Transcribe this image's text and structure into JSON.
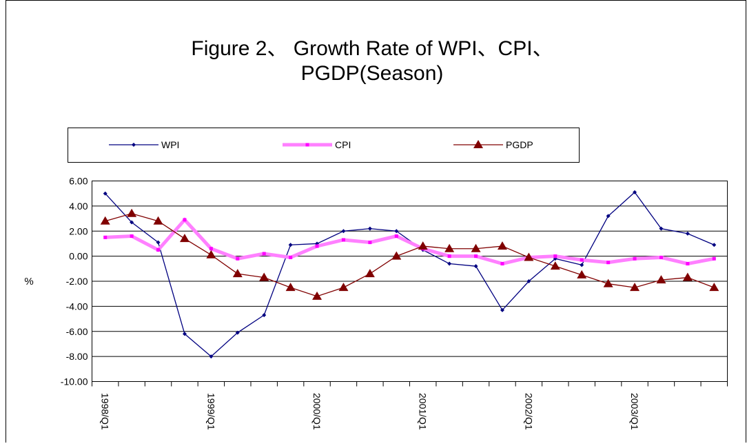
{
  "chart_data": {
    "type": "line",
    "title": "Figure 2、 Growth Rate of WPI、CPI、",
    "subtitle": "PGDP(Season)",
    "y_label": "%",
    "categories": [
      "1998/Q1",
      null,
      null,
      null,
      "1999/Q1",
      null,
      null,
      null,
      "2000/Q1",
      null,
      null,
      null,
      "2001/Q1",
      null,
      null,
      null,
      "2002/Q1",
      null,
      null,
      null,
      "2003/Q1",
      null,
      null,
      null
    ],
    "series": [
      {
        "name": "WPI",
        "color": "#000080",
        "marker": "diamond",
        "values": [
          5.0,
          2.7,
          1.1,
          -6.2,
          -8.0,
          -6.1,
          -4.7,
          0.9,
          1.0,
          2.0,
          2.2,
          2.0,
          0.5,
          -0.6,
          -0.8,
          -4.3,
          -2.0,
          -0.2,
          -0.7,
          3.2,
          5.1,
          2.2,
          1.8,
          0.9
        ]
      },
      {
        "name": "CPI",
        "color": "#ff80ff",
        "marker": "square",
        "values": [
          1.5,
          1.6,
          0.5,
          2.9,
          0.6,
          -0.2,
          0.2,
          -0.1,
          0.8,
          1.3,
          1.1,
          1.6,
          0.6,
          0.0,
          0.0,
          -0.6,
          -0.1,
          0.0,
          -0.3,
          -0.5,
          -0.2,
          -0.1,
          -0.6,
          -0.2
        ]
      },
      {
        "name": "PGDP",
        "color": "#800000",
        "marker": "triangle",
        "values": [
          2.8,
          3.4,
          2.8,
          1.4,
          0.1,
          -1.4,
          -1.7,
          -2.5,
          -3.2,
          -2.5,
          -1.4,
          0.0,
          0.8,
          0.6,
          0.6,
          0.8,
          -0.1,
          -0.8,
          -1.5,
          -2.2,
          -2.5,
          -1.9,
          -1.7,
          -2.5
        ]
      }
    ],
    "ylim": [
      -10,
      6
    ],
    "yticks": [
      {
        "value": -10,
        "label": "-10.00"
      },
      {
        "value": -8,
        "label": "-8.00"
      },
      {
        "value": -6,
        "label": "-6.00"
      },
      {
        "value": -4,
        "label": "-4.00"
      },
      {
        "value": -2,
        "label": "-2.00"
      },
      {
        "value": 0,
        "label": "0.00"
      },
      {
        "value": 2,
        "label": "2.00"
      },
      {
        "value": 4,
        "label": "4.00"
      },
      {
        "value": 6,
        "label": "6.00"
      }
    ],
    "grid": true
  }
}
